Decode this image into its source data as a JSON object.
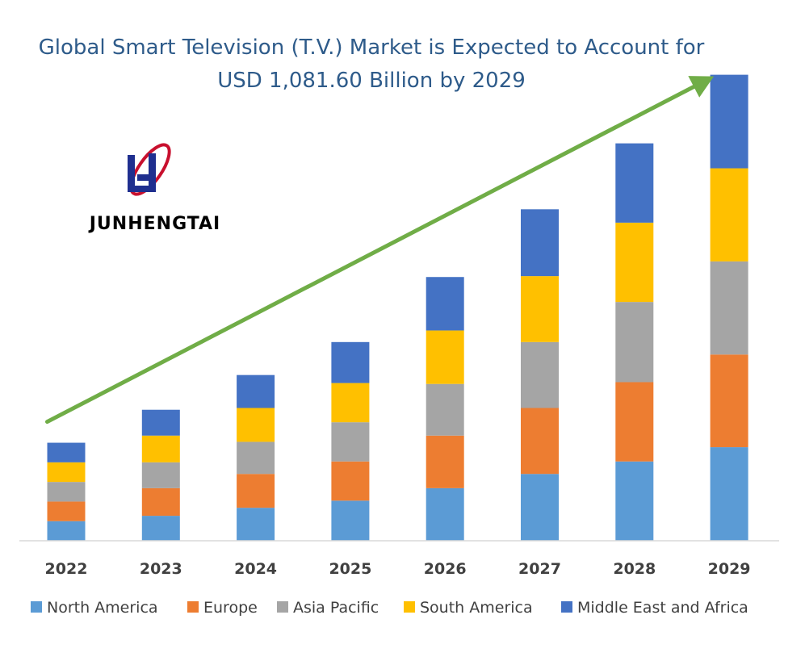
{
  "logo": {
    "text": "JUNHENGTAI"
  },
  "chart_data": {
    "type": "bar",
    "stacked": true,
    "title": "Global Smart Television (T.V.) Market is Expected to Account for USD 1,081.60 Billion by 2029",
    "title_lines": [
      "Global Smart Television (T.V.) Market is Expected to Account for",
      "USD 1,081.60 Billion by 2029"
    ],
    "xlabel": "",
    "ylabel": "",
    "categories": [
      "2022",
      "2023",
      "2024",
      "2025",
      "2026",
      "2027",
      "2028",
      "2029"
    ],
    "ylim": [
      0,
      100
    ],
    "grid": false,
    "legend_position": "bottom",
    "trend_arrow": true,
    "trend_arrow_color": "#70ad47",
    "series": [
      {
        "name": "North America",
        "color": "#5b9bd5",
        "values": [
          4.4,
          5.6,
          7.4,
          9.0,
          11.8,
          15.0,
          17.8,
          21.0
        ]
      },
      {
        "name": "Europe",
        "color": "#ed7d31",
        "values": [
          4.4,
          6.2,
          7.6,
          8.8,
          11.8,
          14.8,
          17.8,
          20.8
        ]
      },
      {
        "name": "Asia Pacific",
        "color": "#a5a5a5",
        "values": [
          4.4,
          5.8,
          7.2,
          8.8,
          11.6,
          14.8,
          18.0,
          20.9
        ]
      },
      {
        "name": "South America",
        "color": "#ffc000",
        "values": [
          4.4,
          6.0,
          7.6,
          8.8,
          12.0,
          14.8,
          17.8,
          20.9
        ]
      },
      {
        "name": "Middle East and Africa",
        "color": "#4472c4",
        "values": [
          4.4,
          5.8,
          7.4,
          9.2,
          12.0,
          15.0,
          17.8,
          21.0
        ]
      }
    ]
  }
}
